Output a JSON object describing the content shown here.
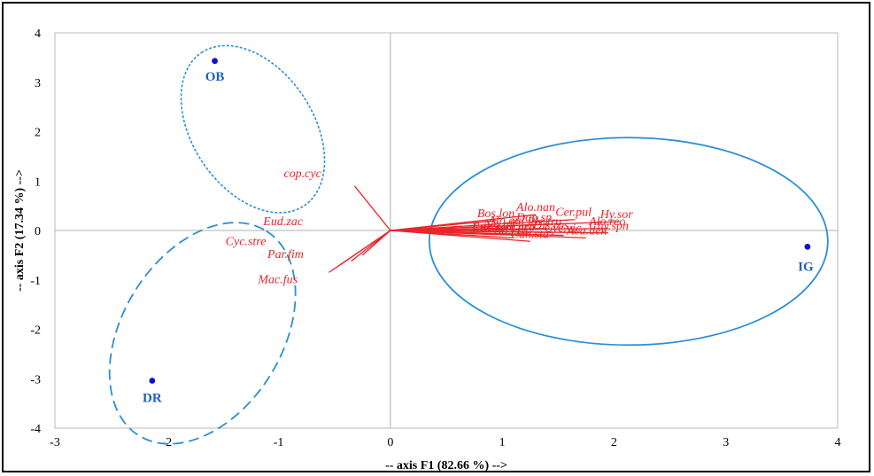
{
  "chart_data": {
    "type": "scatter",
    "xlabel": "-- axis F1 (82.66 %) -->",
    "ylabel": "-- axis F2 (17.34 %) -->",
    "xlim": [
      -3,
      4
    ],
    "ylim": [
      -4,
      4
    ],
    "xticks": [
      "-3",
      "-2",
      "-1",
      "0",
      "1",
      "2",
      "3",
      "4"
    ],
    "yticks": [
      "4",
      "3",
      "2",
      "1",
      "0",
      "-1",
      "-2",
      "-3",
      "-4"
    ],
    "grid": false,
    "colors": {
      "sites": "#1f5fbf",
      "species": "#e8262b",
      "ellipses": "#2b8fd6"
    },
    "sites": [
      {
        "name": "OB",
        "x": -1.57,
        "y": 3.43
      },
      {
        "name": "DR",
        "x": -2.13,
        "y": -3.04
      },
      {
        "name": "IG",
        "x": 3.73,
        "y": -0.33
      }
    ],
    "species": [
      {
        "name": "cop.cyc",
        "x": -0.32,
        "y": 0.9,
        "bold": false
      },
      {
        "name": "Eud.zac",
        "x": -0.25,
        "y": -0.5,
        "bold": false
      },
      {
        "name": "Cyc.stre",
        "x": -0.35,
        "y": -0.62,
        "bold": false
      },
      {
        "name": "Par.fim",
        "x": -0.45,
        "y": -0.7,
        "bold": false
      },
      {
        "name": "Mac.fus",
        "x": -0.55,
        "y": -0.85,
        "bold": false
      },
      {
        "name": "Alo.nan",
        "x": 1.3,
        "y": 0.32,
        "bold": false
      },
      {
        "name": "Bos.lon",
        "x": 0.95,
        "y": 0.2,
        "bold": false
      },
      {
        "name": "Cer.pul",
        "x": 1.65,
        "y": 0.22,
        "bold": false
      },
      {
        "name": "Hy.sor",
        "x": 2.05,
        "y": 0.18,
        "bold": false
      },
      {
        "name": "Dap.sp",
        "x": 1.3,
        "y": 0.12,
        "bold": false
      },
      {
        "name": "Alo.gui",
        "x": 1.05,
        "y": 0.05,
        "bold": false
      },
      {
        "name": "Ple.tru",
        "x": 1.4,
        "y": 0.04,
        "bold": false
      },
      {
        "name": "Alo.rec",
        "x": 1.95,
        "y": 0.04,
        "bold": false
      },
      {
        "name": "Alo.aff",
        "x": 1.0,
        "y": -0.02,
        "bold": false
      },
      {
        "name": "Dis.ros",
        "x": 1.45,
        "y": -0.04,
        "bold": false
      },
      {
        "name": "Chy.sph",
        "x": 1.95,
        "y": -0.05,
        "bold": false
      },
      {
        "name": "Euc.serr.pro",
        "x": 0.9,
        "y": -0.08,
        "bold": true
      },
      {
        "name": "Cyc.vic",
        "x": 1.55,
        "y": -0.1,
        "bold": false
      },
      {
        "name": "Att.cra",
        "x": 1.1,
        "y": -0.15,
        "bold": false
      },
      {
        "name": "Aca.den",
        "x": 1.75,
        "y": -0.15,
        "bold": false
      },
      {
        "name": "Can.sta",
        "x": 1.25,
        "y": -0.22,
        "bold": false
      }
    ]
  }
}
